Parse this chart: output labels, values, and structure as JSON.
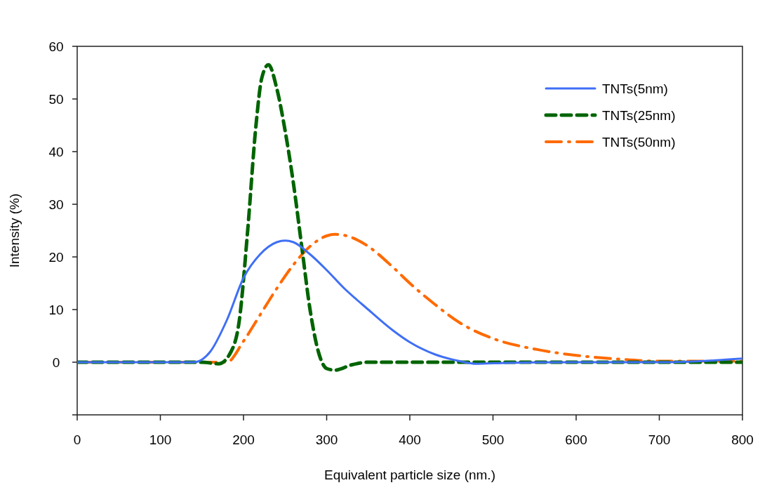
{
  "chart_data": {
    "type": "line",
    "xlabel": "Equivalent particle size (nm.)",
    "ylabel": "Intensity (%)",
    "xlim": [
      0,
      800
    ],
    "xticks": [
      0,
      100,
      200,
      300,
      400,
      500,
      600,
      700,
      800
    ],
    "ylim": [
      -10,
      60
    ],
    "yticks": [
      {
        "value": -10,
        "label": null
      },
      0,
      10,
      20,
      30,
      40,
      50,
      60
    ],
    "grid": false,
    "legend": "top right",
    "marker": "none",
    "series": [
      {
        "name": "TNTs(5nm)",
        "color": "#3f6ff5",
        "line_style": "solid",
        "x": [
          0,
          100,
          140,
          160,
          180,
          200,
          220,
          240,
          250,
          260,
          280,
          300,
          320,
          350,
          380,
          400,
          430,
          460,
          480,
          500,
          600,
          700,
          750,
          800
        ],
        "values": [
          0,
          0,
          0,
          2,
          8,
          16,
          20.5,
          22.8,
          23.1,
          22.8,
          20.5,
          17.5,
          14.2,
          10,
          6,
          3.8,
          1.5,
          0.2,
          -0.3,
          -0.2,
          0,
          0,
          0.2,
          0.7
        ]
      },
      {
        "name": "TNTs(25nm)",
        "color": "#006400",
        "line_style": "dashed",
        "x": [
          0,
          150,
          170,
          185,
          195,
          205,
          215,
          222,
          230,
          240,
          250,
          260,
          270,
          280,
          290,
          300,
          310,
          330,
          350,
          800
        ],
        "values": [
          0,
          0,
          -0.3,
          2,
          8,
          25,
          45,
          54,
          56.5,
          52,
          44,
          34,
          22,
          10,
          2,
          -1.2,
          -1.5,
          -0.5,
          0,
          0
        ]
      },
      {
        "name": "TNTs(50nm)",
        "color": "#ff6a00",
        "line_style": "dashdot",
        "x": [
          0,
          180,
          200,
          220,
          240,
          260,
          280,
          300,
          310,
          330,
          350,
          380,
          400,
          430,
          460,
          500,
          550,
          600,
          650,
          700,
          800
        ],
        "values": [
          0,
          0,
          4,
          9,
          14,
          18.5,
          22,
          24,
          24.3,
          23.7,
          22,
          18,
          15,
          11,
          7.5,
          4.5,
          2.5,
          1.3,
          0.6,
          0.2,
          0.2
        ]
      }
    ]
  }
}
